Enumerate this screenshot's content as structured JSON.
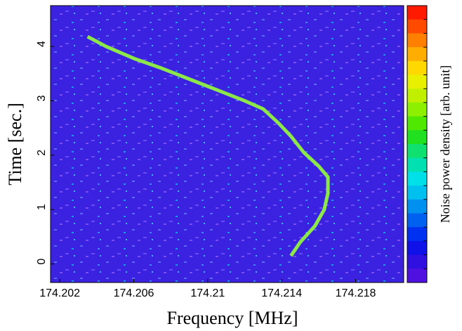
{
  "chart_data": {
    "type": "spectrogram",
    "xlabel": "Frequency [MHz]",
    "ylabel": "Time [sec.]",
    "colorbar_label": "Noise power density [arb. unit]",
    "xlim": [
      174.2015,
      174.2206
    ],
    "xticks": [
      174.202,
      174.206,
      174.21,
      174.214,
      174.218
    ],
    "ylim": [
      -0.34,
      4.75
    ],
    "yticks": [
      0,
      1,
      2,
      3,
      4
    ],
    "background_color": "#3b22e0",
    "colorscale": [
      "#ff1a00",
      "#ff4a00",
      "#ff8000",
      "#ffad00",
      "#ffd800",
      "#e8f000",
      "#c0f000",
      "#8cf000",
      "#50e800",
      "#20e020",
      "#10e070",
      "#00e0b0",
      "#00e0e8",
      "#00c0f0",
      "#0090f0",
      "#0060f0",
      "#0030f0",
      "#1010e8",
      "#3010e0",
      "#5010e0"
    ],
    "series": [
      {
        "color": "#8ce84a",
        "x": [
          174.2035,
          174.2045,
          174.206,
          174.2075,
          174.209,
          174.2105,
          174.212,
          174.213,
          174.2138,
          174.2145,
          174.2152,
          174.216,
          174.2165,
          174.2165,
          174.2163,
          174.2158,
          174.215,
          174.2145
        ],
        "values": [
          4.18,
          4.0,
          3.78,
          3.6,
          3.4,
          3.2,
          3.0,
          2.85,
          2.6,
          2.35,
          2.05,
          1.8,
          1.6,
          1.3,
          1.0,
          0.7,
          0.4,
          0.15
        ]
      }
    ]
  }
}
